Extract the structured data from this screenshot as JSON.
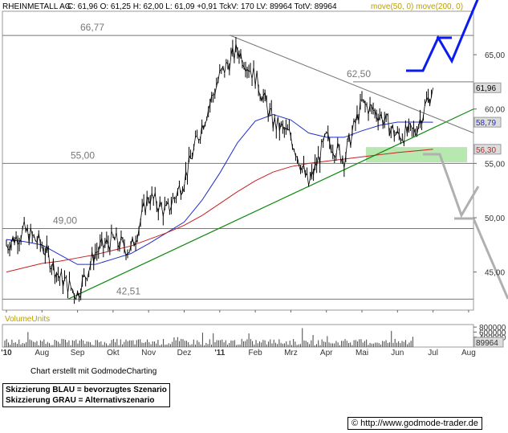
{
  "header": {
    "symbol": "RHEINMETALL AG",
    "quote": "C: 61,96 O: 61,25 H: 62,00 L: 61,09 +0,91 TckV: 170 LV: 89964 TotV: 89964",
    "ma_legend": "move(50, 0) move(200, 0)"
  },
  "colors": {
    "ma50": "#1f2fc8",
    "ma200": "#c81f1f",
    "trend": "#118a11",
    "scenario_blue": "#0a1cf0",
    "scenario_gray": "#b0b0b0",
    "zone": "#aee6a6"
  },
  "chart_data": {
    "type": "line",
    "title": "",
    "x_labels": [
      "'10",
      "Aug",
      "Sep",
      "Okt",
      "Nov",
      "Dez",
      "'11",
      "Feb",
      "Mrz",
      "Apr",
      "Mai",
      "Jun",
      "Jul",
      "Aug"
    ],
    "y_ticks": [
      "65,00",
      "60,00",
      "55,00",
      "50,00",
      "45,00"
    ],
    "ylim": [
      41.5,
      69
    ],
    "levels": [
      {
        "label": "66,77",
        "value": 66.77
      },
      {
        "label": "62,50",
        "value": 62.5
      },
      {
        "label": "55,00",
        "value": 55.0
      },
      {
        "label": "49,00",
        "value": 49.0
      },
      {
        "label": "42,51",
        "value": 42.51
      }
    ],
    "price_tags": [
      {
        "label": "61,96",
        "value": 61.96
      },
      {
        "label": "58,79",
        "value": 58.79
      },
      {
        "label": "56,30",
        "value": 56.3
      }
    ],
    "price_x": [
      "'10",
      "Jul-15",
      "Aug",
      "Aug-15",
      "Sep",
      "Sep-15",
      "Okt",
      "Okt-15",
      "Nov",
      "Nov-15",
      "Dez",
      "Dez-15",
      "'11",
      "Jan-15",
      "Feb",
      "Feb-15",
      "Mrz",
      "Mrz-15",
      "Apr",
      "Apr-15",
      "Mai",
      "Mai-15",
      "Jun",
      "Jun-15",
      "Jul"
    ],
    "price": [
      47.5,
      48.8,
      47.5,
      44.5,
      43.0,
      46.8,
      48.0,
      47.0,
      52.0,
      50.5,
      53.5,
      58.5,
      63.0,
      65.5,
      63.0,
      58.8,
      57.5,
      53.0,
      57.3,
      55.5,
      60.5,
      59.5,
      57.5,
      58.0,
      61.96
    ],
    "series": [
      {
        "name": "move(50, 0)",
        "values": [
          48.0,
          47.8,
          47.5,
          46.6,
          45.7,
          45.7,
          46.2,
          46.7,
          47.6,
          48.6,
          49.6,
          51.6,
          54.1,
          56.9,
          58.9,
          59.5,
          59.0,
          57.8,
          57.4,
          57.4,
          58.0,
          58.5,
          58.8,
          58.8,
          58.79
        ]
      },
      {
        "name": "move(200, 0)",
        "values": [
          45.0,
          45.4,
          45.8,
          46.0,
          46.3,
          46.6,
          47.0,
          47.4,
          48.0,
          48.6,
          49.3,
          50.2,
          51.3,
          52.4,
          53.4,
          54.2,
          54.7,
          55.0,
          55.2,
          55.4,
          55.6,
          55.8,
          56.0,
          56.15,
          56.3
        ]
      }
    ],
    "volume": {
      "label": "VolumeUnits",
      "ticks": [
        "800000",
        "600000",
        "400000"
      ],
      "last": "89964",
      "ylim": [
        0,
        900000
      ]
    }
  },
  "footer": {
    "credit": "Chart erstellt mit GodmodeCharting",
    "legend_blue": "Skizzierung BLAU = bevorzugtes Szenario",
    "legend_gray": "Skizzierung GRAU = Alternativszenario",
    "url": "http://www.godmode-trader.de",
    "copyright": "©"
  }
}
